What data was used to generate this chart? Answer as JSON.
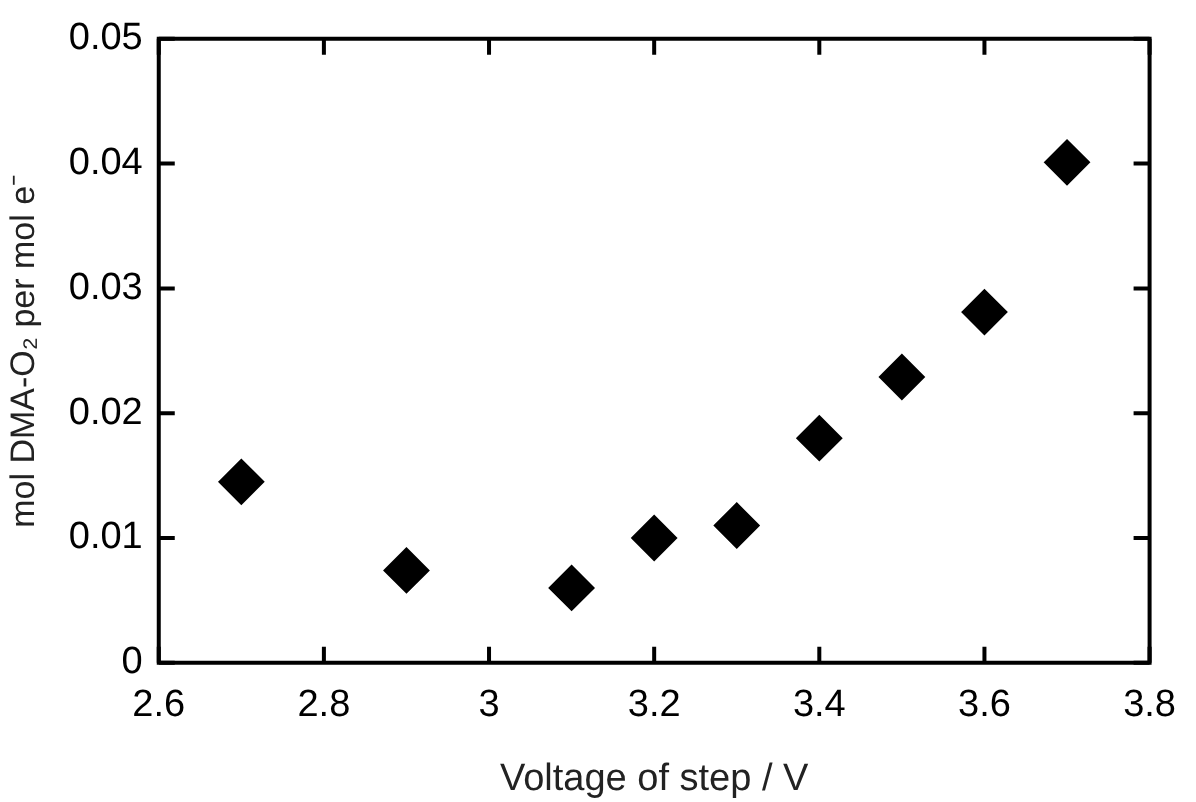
{
  "chart_data": {
    "type": "scatter",
    "xlabel": "Voltage of step / V",
    "ylabel": "mol DMA-O₂ per mol e⁻",
    "x": [
      2.7,
      2.9,
      3.1,
      3.2,
      3.3,
      3.4,
      3.5,
      3.6,
      3.7
    ],
    "values": [
      0.0145,
      0.0074,
      0.006,
      0.01,
      0.011,
      0.018,
      0.0229,
      0.0281,
      0.0401
    ],
    "color": "#000000",
    "marker": "diamond",
    "xlim": [
      2.6,
      3.8
    ],
    "xticks": [
      2.6,
      2.8,
      3,
      3.2,
      3.4,
      3.6,
      3.8
    ],
    "ylim": [
      0,
      0.05
    ],
    "yticks": [
      0,
      0.01,
      0.02,
      0.03,
      0.04,
      0.05
    ],
    "grid": false,
    "legend": false
  }
}
